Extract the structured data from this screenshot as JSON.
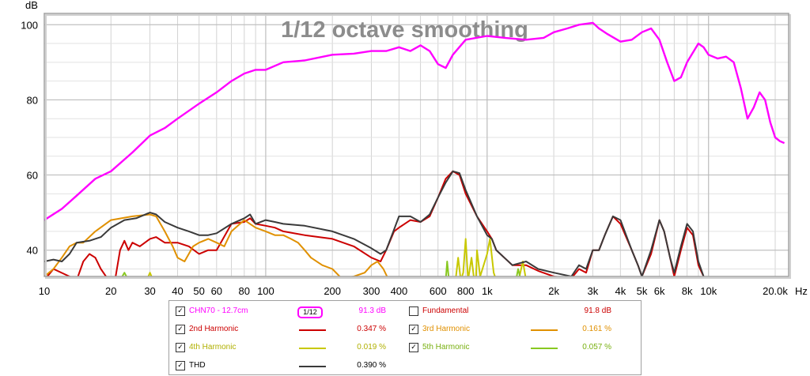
{
  "chart_data": {
    "type": "line",
    "title": "1/12 octave smoothing",
    "ylabel": "dB",
    "xlabel": "Hz",
    "x_scale": "log",
    "xlim": [
      10,
      23000
    ],
    "ylim": [
      33,
      103
    ],
    "grid": true,
    "y_ticks": [
      40,
      60,
      80,
      100
    ],
    "y_tick_labels": [
      "40",
      "60",
      "80",
      "100"
    ],
    "x_ticks": [
      10,
      20,
      30,
      40,
      50,
      60,
      80,
      100,
      200,
      300,
      400,
      600,
      800,
      1000,
      2000,
      3000,
      4000,
      5000,
      6000,
      8000,
      10000,
      20000
    ],
    "x_tick_labels": [
      "10",
      "20",
      "30",
      "40",
      "50",
      "60",
      "80",
      "100",
      "200",
      "300",
      "400",
      "600",
      "800",
      "1k",
      "2k",
      "3k",
      "4k",
      "5k",
      "6k",
      "8k",
      "10k",
      "20.0k"
    ],
    "series": [
      {
        "name": "CHN70 - 12.7cm",
        "color": "#ff00ff",
        "points": [
          [
            10,
            48
          ],
          [
            12,
            51
          ],
          [
            14,
            54.5
          ],
          [
            17,
            59
          ],
          [
            20,
            61
          ],
          [
            25,
            66
          ],
          [
            30,
            70.5
          ],
          [
            35,
            72.5
          ],
          [
            40,
            75
          ],
          [
            50,
            79
          ],
          [
            60,
            82
          ],
          [
            70,
            85
          ],
          [
            80,
            87
          ],
          [
            90,
            88
          ],
          [
            100,
            88
          ],
          [
            120,
            90
          ],
          [
            150,
            90.5
          ],
          [
            200,
            92
          ],
          [
            250,
            92.3
          ],
          [
            300,
            93
          ],
          [
            350,
            93
          ],
          [
            400,
            94
          ],
          [
            450,
            93
          ],
          [
            500,
            94.5
          ],
          [
            550,
            93
          ],
          [
            600,
            89.5
          ],
          [
            650,
            88.5
          ],
          [
            700,
            92
          ],
          [
            800,
            96
          ],
          [
            1000,
            97
          ],
          [
            1200,
            96.5
          ],
          [
            1500,
            96
          ],
          [
            1800,
            96.5
          ],
          [
            2000,
            98
          ],
          [
            2300,
            99
          ],
          [
            2600,
            100
          ],
          [
            3000,
            100.5
          ],
          [
            3200,
            99
          ],
          [
            3500,
            97.5
          ],
          [
            4000,
            95.5
          ],
          [
            4500,
            96
          ],
          [
            5000,
            98
          ],
          [
            5500,
            99
          ],
          [
            6000,
            96
          ],
          [
            6500,
            90
          ],
          [
            7000,
            85
          ],
          [
            7500,
            86
          ],
          [
            8000,
            90
          ],
          [
            9000,
            95
          ],
          [
            9500,
            94
          ],
          [
            10000,
            92
          ],
          [
            11000,
            91
          ],
          [
            12000,
            91.5
          ],
          [
            13000,
            90
          ],
          [
            14000,
            83
          ],
          [
            15000,
            75
          ],
          [
            16000,
            78
          ],
          [
            17000,
            82
          ],
          [
            18000,
            80
          ],
          [
            19000,
            74
          ],
          [
            20000,
            70
          ],
          [
            21000,
            69
          ],
          [
            22000,
            68.5
          ]
        ]
      },
      {
        "name": "2nd Harmonic",
        "color": "#cc0000",
        "points": [
          [
            10,
            32
          ],
          [
            11,
            35
          ],
          [
            13,
            33
          ],
          [
            14,
            32
          ],
          [
            15,
            37
          ],
          [
            16,
            39
          ],
          [
            17,
            38
          ],
          [
            18,
            35
          ],
          [
            19,
            33
          ],
          [
            20,
            32.5
          ],
          [
            21,
            33
          ],
          [
            22,
            40
          ],
          [
            23,
            42.5
          ],
          [
            24,
            40
          ],
          [
            25,
            42
          ],
          [
            27,
            41
          ],
          [
            30,
            43
          ],
          [
            32,
            43.5
          ],
          [
            35,
            42
          ],
          [
            40,
            42
          ],
          [
            45,
            41
          ],
          [
            50,
            39
          ],
          [
            55,
            40
          ],
          [
            60,
            40
          ],
          [
            70,
            47
          ],
          [
            80,
            47.5
          ],
          [
            85,
            48.5
          ],
          [
            90,
            47
          ],
          [
            100,
            46.5
          ],
          [
            110,
            46
          ],
          [
            120,
            45
          ],
          [
            150,
            44
          ],
          [
            200,
            43
          ],
          [
            250,
            41
          ],
          [
            300,
            38
          ],
          [
            330,
            37
          ],
          [
            350,
            40
          ],
          [
            380,
            45
          ],
          [
            400,
            46
          ],
          [
            450,
            48
          ],
          [
            500,
            47.5
          ],
          [
            550,
            49
          ],
          [
            600,
            54
          ],
          [
            650,
            59
          ],
          [
            700,
            61
          ],
          [
            750,
            60
          ],
          [
            800,
            55
          ],
          [
            900,
            49
          ],
          [
            1000,
            45
          ],
          [
            1050,
            43
          ],
          [
            1100,
            40
          ],
          [
            1300,
            36
          ],
          [
            1500,
            36
          ],
          [
            1700,
            34.5
          ],
          [
            2000,
            33
          ],
          [
            2400,
            32.5
          ],
          [
            2600,
            35
          ],
          [
            2800,
            34
          ],
          [
            3000,
            40
          ],
          [
            3200,
            40
          ],
          [
            3400,
            44
          ],
          [
            3700,
            49
          ],
          [
            4000,
            47
          ],
          [
            4500,
            40
          ],
          [
            4800,
            36
          ],
          [
            5000,
            33
          ],
          [
            5500,
            39
          ],
          [
            6000,
            48
          ],
          [
            6300,
            45
          ],
          [
            6700,
            38
          ],
          [
            7000,
            33
          ],
          [
            7500,
            40
          ],
          [
            8000,
            46
          ],
          [
            8500,
            44
          ],
          [
            9000,
            36
          ],
          [
            9500,
            33
          ]
        ]
      },
      {
        "name": "3rd Harmonic",
        "color": "#e09000",
        "points": [
          [
            10,
            33
          ],
          [
            11,
            35
          ],
          [
            12,
            38
          ],
          [
            13,
            41
          ],
          [
            14,
            42
          ],
          [
            15,
            42
          ],
          [
            17,
            45
          ],
          [
            20,
            48
          ],
          [
            25,
            49
          ],
          [
            30,
            49.5
          ],
          [
            32,
            49
          ],
          [
            35,
            45
          ],
          [
            38,
            41
          ],
          [
            40,
            38
          ],
          [
            43,
            37
          ],
          [
            47,
            41
          ],
          [
            50,
            42
          ],
          [
            55,
            43
          ],
          [
            60,
            42
          ],
          [
            65,
            41
          ],
          [
            70,
            45
          ],
          [
            80,
            48
          ],
          [
            90,
            46
          ],
          [
            100,
            45
          ],
          [
            110,
            44
          ],
          [
            120,
            44
          ],
          [
            130,
            43
          ],
          [
            140,
            42
          ],
          [
            150,
            40
          ],
          [
            160,
            38
          ],
          [
            180,
            36
          ],
          [
            200,
            35
          ],
          [
            220,
            32.5
          ],
          [
            250,
            33
          ],
          [
            280,
            34
          ],
          [
            300,
            36
          ],
          [
            320,
            37
          ],
          [
            340,
            35
          ],
          [
            360,
            32
          ]
        ]
      },
      {
        "name": "4th Harmonic",
        "color": "#c8c800",
        "points": [
          [
            29,
            32
          ],
          [
            30,
            34
          ],
          [
            31,
            32
          ],
          [
            720,
            32
          ],
          [
            740,
            38
          ],
          [
            760,
            32
          ],
          [
            780,
            34
          ],
          [
            800,
            43
          ],
          [
            820,
            32
          ],
          [
            850,
            38
          ],
          [
            870,
            33
          ],
          [
            890,
            32
          ],
          [
            900,
            40
          ],
          [
            930,
            33
          ],
          [
            1000,
            39
          ],
          [
            1030,
            43
          ],
          [
            1070,
            34
          ],
          [
            1100,
            32
          ],
          [
            1400,
            33
          ],
          [
            1450,
            37
          ],
          [
            1500,
            32
          ]
        ]
      },
      {
        "name": "5th Harmonic",
        "color": "#88c820",
        "points": [
          [
            22,
            32
          ],
          [
            23,
            34
          ],
          [
            24,
            32
          ],
          [
            650,
            32
          ],
          [
            660,
            37
          ],
          [
            670,
            33
          ],
          [
            680,
            32
          ],
          [
            1350,
            32
          ],
          [
            1380,
            35
          ],
          [
            1420,
            32
          ]
        ]
      },
      {
        "name": "THD",
        "color": "#3a3a3a",
        "points": [
          [
            10,
            37
          ],
          [
            11,
            37.5
          ],
          [
            12,
            37
          ],
          [
            13,
            39
          ],
          [
            14,
            42
          ],
          [
            16,
            42.5
          ],
          [
            18,
            43.5
          ],
          [
            20,
            46
          ],
          [
            23,
            48
          ],
          [
            26,
            48.5
          ],
          [
            30,
            50
          ],
          [
            32,
            49.5
          ],
          [
            35,
            47.5
          ],
          [
            40,
            46
          ],
          [
            45,
            45
          ],
          [
            50,
            44
          ],
          [
            55,
            44
          ],
          [
            60,
            44.5
          ],
          [
            70,
            47
          ],
          [
            80,
            48.5
          ],
          [
            85,
            49.5
          ],
          [
            90,
            47
          ],
          [
            100,
            48
          ],
          [
            110,
            47.5
          ],
          [
            120,
            47
          ],
          [
            150,
            46.5
          ],
          [
            200,
            45
          ],
          [
            250,
            43
          ],
          [
            300,
            40.5
          ],
          [
            330,
            39
          ],
          [
            350,
            40
          ],
          [
            380,
            45.5
          ],
          [
            400,
            49
          ],
          [
            450,
            49
          ],
          [
            500,
            47.5
          ],
          [
            550,
            49.5
          ],
          [
            600,
            54
          ],
          [
            650,
            58
          ],
          [
            700,
            61
          ],
          [
            750,
            60.5
          ],
          [
            800,
            56
          ],
          [
            900,
            49
          ],
          [
            1000,
            44
          ],
          [
            1050,
            43
          ],
          [
            1100,
            40
          ],
          [
            1300,
            36
          ],
          [
            1500,
            37
          ],
          [
            1700,
            35
          ],
          [
            2000,
            34
          ],
          [
            2400,
            33
          ],
          [
            2600,
            36
          ],
          [
            2800,
            35
          ],
          [
            3000,
            40
          ],
          [
            3200,
            40
          ],
          [
            3400,
            44
          ],
          [
            3700,
            49
          ],
          [
            4000,
            48
          ],
          [
            4500,
            40
          ],
          [
            4800,
            36
          ],
          [
            5000,
            33
          ],
          [
            5500,
            40
          ],
          [
            6000,
            48
          ],
          [
            6300,
            45
          ],
          [
            6700,
            38
          ],
          [
            7000,
            34
          ],
          [
            7500,
            41
          ],
          [
            8000,
            47
          ],
          [
            8500,
            45
          ],
          [
            9000,
            37
          ],
          [
            9500,
            33
          ]
        ]
      }
    ]
  },
  "legend": {
    "badge": "1/12",
    "rows": [
      {
        "name": "CHN70 - 12.7cm",
        "checked": true,
        "value": "91.3 dB",
        "color": "#ff00ff",
        "has_badge": true
      },
      {
        "name": "Fundamental",
        "checked": false,
        "value": "91.8 dB",
        "color": "#cc0000",
        "has_badge": false
      },
      {
        "name": "2nd Harmonic",
        "checked": true,
        "value": "0.347 %",
        "color": "#cc0000",
        "has_badge": false
      },
      {
        "name": "3rd Harmonic",
        "checked": true,
        "value": "0.161 %",
        "color": "#e09000",
        "has_badge": false
      },
      {
        "name": "4th Harmonic",
        "checked": true,
        "value": "0.019 %",
        "color": "#c8c800",
        "has_badge": false
      },
      {
        "name": "5th Harmonic",
        "checked": true,
        "value": "0.057 %",
        "color": "#88c820",
        "has_badge": false
      },
      {
        "name": "THD",
        "checked": true,
        "value": "0.390 %",
        "color": "#3a3a3a",
        "has_badge": false
      }
    ]
  }
}
